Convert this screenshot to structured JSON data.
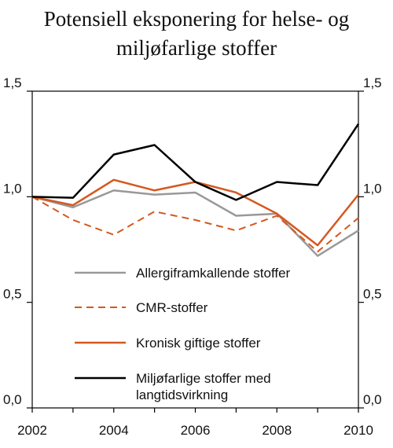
{
  "chart_data": {
    "type": "line",
    "title_line1": "Potensiell eksponering for helse- og",
    "title_line2": "miljøfarlige stoffer",
    "x": [
      2002,
      2003,
      2004,
      2005,
      2006,
      2007,
      2008,
      2009,
      2010
    ],
    "xticks": [
      "2002",
      "2004",
      "2006",
      "2008",
      "2010"
    ],
    "xtick_values": [
      2002,
      2004,
      2006,
      2008,
      2010
    ],
    "ylim": [
      0,
      1.5
    ],
    "yticks": [
      "0,0",
      "0,5",
      "1,0",
      "1,5"
    ],
    "ytick_values": [
      0,
      0.5,
      1.0,
      1.5
    ],
    "grid": false,
    "legend_position": "bottom-center",
    "series": [
      {
        "name": "Allergiframkallende stoffer",
        "color": "#999999",
        "style": "solid",
        "values": [
          1.0,
          0.95,
          1.03,
          1.01,
          1.02,
          0.91,
          0.92,
          0.72,
          0.84
        ]
      },
      {
        "name": "CMR-stoffer",
        "color": "#d4581f",
        "style": "dashed",
        "values": [
          1.0,
          0.89,
          0.82,
          0.93,
          0.89,
          0.84,
          0.91,
          0.74,
          0.9
        ]
      },
      {
        "name": "Kronisk giftige stoffer",
        "color": "#d4581f",
        "style": "solid",
        "values": [
          1.0,
          0.96,
          1.08,
          1.03,
          1.07,
          1.02,
          0.92,
          0.77,
          1.01
        ]
      },
      {
        "name": "Miljøfarlige stoffer med langtidsvirkning",
        "name_line1": "Miljøfarlige stoffer med",
        "name_line2": "langtidsvirkning",
        "color": "#000000",
        "style": "solid",
        "values": [
          1.0,
          0.995,
          1.2,
          1.245,
          1.07,
          0.985,
          1.07,
          1.055,
          1.345
        ]
      }
    ]
  }
}
